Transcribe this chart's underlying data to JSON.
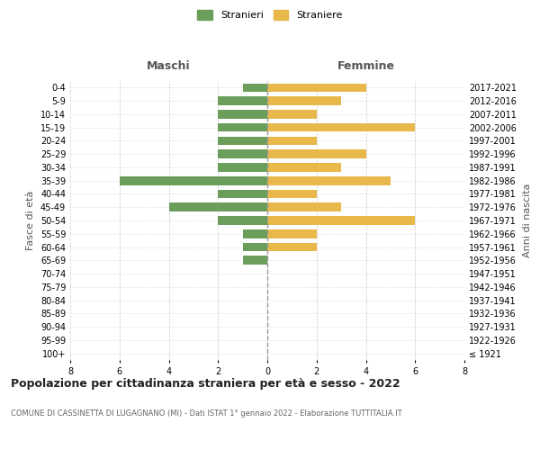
{
  "age_groups": [
    "100+",
    "95-99",
    "90-94",
    "85-89",
    "80-84",
    "75-79",
    "70-74",
    "65-69",
    "60-64",
    "55-59",
    "50-54",
    "45-49",
    "40-44",
    "35-39",
    "30-34",
    "25-29",
    "20-24",
    "15-19",
    "10-14",
    "5-9",
    "0-4"
  ],
  "birth_years": [
    "≤ 1921",
    "1922-1926",
    "1927-1931",
    "1932-1936",
    "1937-1941",
    "1942-1946",
    "1947-1951",
    "1952-1956",
    "1957-1961",
    "1962-1966",
    "1967-1971",
    "1972-1976",
    "1977-1981",
    "1982-1986",
    "1987-1991",
    "1992-1996",
    "1997-2001",
    "2002-2006",
    "2007-2011",
    "2012-2016",
    "2017-2021"
  ],
  "maschi": [
    0,
    0,
    0,
    0,
    0,
    0,
    0,
    1,
    1,
    1,
    2,
    4,
    2,
    6,
    2,
    2,
    2,
    2,
    2,
    2,
    1
  ],
  "femmine": [
    0,
    0,
    0,
    0,
    0,
    0,
    0,
    0,
    2,
    2,
    6,
    3,
    2,
    5,
    3,
    4,
    2,
    6,
    2,
    3,
    4
  ],
  "color_maschi": "#6a9e5a",
  "color_femmine": "#e8b84b",
  "title": "Popolazione per cittadinanza straniera per età e sesso - 2022",
  "subtitle": "COMUNE DI CASSINETTA DI LUGAGNANO (MI) - Dati ISTAT 1° gennaio 2022 - Elaborazione TUTTITALIA.IT",
  "xlabel_left": "Maschi",
  "xlabel_right": "Femmine",
  "ylabel_left": "Fasce di età",
  "ylabel_right": "Anni di nascita",
  "legend_maschi": "Stranieri",
  "legend_femmine": "Straniere",
  "xlim": 8,
  "background_color": "#ffffff",
  "grid_color": "#cccccc",
  "title_fontsize": 9,
  "subtitle_fontsize": 6,
  "tick_fontsize": 7,
  "label_fontsize": 8,
  "header_fontsize": 9
}
